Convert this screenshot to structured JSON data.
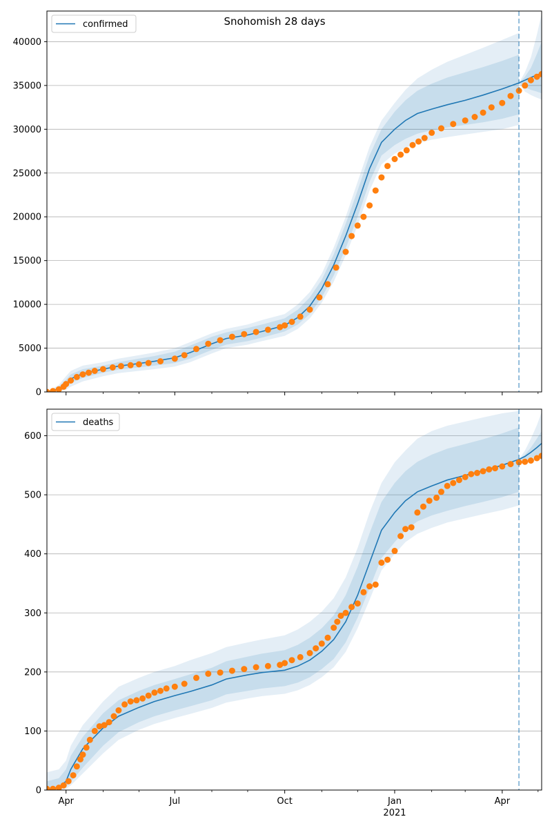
{
  "figure": {
    "title": "Snohomish 28 days"
  },
  "colors": {
    "band": "#1f77b4",
    "model_line": "#1f77b4",
    "observed": "#ff7f0e",
    "grid": "#b0b0b0",
    "forecast_line": "#1f77b4"
  },
  "x_axis": {
    "domain_days": [
      0,
      414
    ],
    "ticks": [
      {
        "day": 16,
        "label": "Apr",
        "sublabel": ""
      },
      {
        "day": 107,
        "label": "Jul",
        "sublabel": ""
      },
      {
        "day": 199,
        "label": "Oct",
        "sublabel": ""
      },
      {
        "day": 291,
        "label": "Jan",
        "sublabel": "2021"
      },
      {
        "day": 381,
        "label": "Apr",
        "sublabel": ""
      }
    ],
    "minor_ticks": [
      47,
      77,
      138,
      168,
      230,
      260,
      322,
      350,
      411
    ],
    "forecast_start_day": 395
  },
  "chart_data": [
    {
      "type": "line",
      "legend": "confirmed",
      "legend_position": "top-left",
      "grid": "horizontal",
      "ylim": [
        0,
        43500
      ],
      "yticks": [
        0,
        5000,
        10000,
        15000,
        20000,
        25000,
        30000,
        35000,
        40000
      ],
      "model": {
        "x": [
          0,
          10,
          16,
          20,
          30,
          47,
          60,
          77,
          90,
          107,
          120,
          138,
          150,
          168,
          180,
          199,
          210,
          220,
          230,
          240,
          250,
          260,
          270,
          280,
          291,
          300,
          310,
          322,
          335,
          350,
          365,
          381,
          395
        ],
        "y": [
          0,
          350,
          900,
          1500,
          2100,
          2600,
          2950,
          3250,
          3500,
          3900,
          4500,
          5500,
          6100,
          6500,
          6900,
          7600,
          8500,
          9800,
          11800,
          14500,
          17800,
          21500,
          25500,
          28500,
          30000,
          31000,
          31800,
          32300,
          32800,
          33300,
          33900,
          34600,
          35300
        ]
      },
      "bands": {
        "x": [
          0,
          10,
          16,
          20,
          30,
          47,
          60,
          77,
          90,
          107,
          120,
          138,
          150,
          168,
          180,
          199,
          210,
          220,
          230,
          240,
          250,
          260,
          270,
          280,
          291,
          300,
          310,
          322,
          335,
          350,
          365,
          381,
          395
        ],
        "outer_high": [
          0,
          800,
          1800,
          2400,
          3000,
          3400,
          3800,
          4200,
          4500,
          5000,
          5700,
          6700,
          7200,
          7700,
          8200,
          8900,
          10000,
          11400,
          13500,
          16500,
          20000,
          24000,
          28000,
          31000,
          33000,
          34500,
          35800,
          36800,
          37700,
          38500,
          39300,
          40200,
          41000
        ],
        "mid_high": [
          0,
          600,
          1400,
          2000,
          2600,
          3000,
          3400,
          3800,
          4100,
          4600,
          5300,
          6300,
          6800,
          7300,
          7700,
          8400,
          9400,
          10800,
          12800,
          15700,
          19200,
          23000,
          27000,
          30000,
          32000,
          33300,
          34400,
          35200,
          35900,
          36500,
          37100,
          37800,
          38500
        ],
        "mid_low": [
          0,
          150,
          500,
          1000,
          1600,
          2200,
          2550,
          2800,
          3000,
          3300,
          3800,
          4800,
          5400,
          5800,
          6200,
          6900,
          7700,
          8900,
          10800,
          13300,
          16400,
          20000,
          24000,
          27000,
          28200,
          28900,
          29500,
          29900,
          30200,
          30500,
          30800,
          31200,
          31700
        ],
        "outer_low": [
          0,
          50,
          250,
          600,
          1200,
          1800,
          2150,
          2400,
          2600,
          2900,
          3400,
          4400,
          5000,
          5400,
          5800,
          6400,
          7200,
          8400,
          10200,
          12600,
          15600,
          19000,
          23000,
          26000,
          27200,
          27900,
          28400,
          28800,
          29100,
          29400,
          29700,
          30000,
          30500
        ]
      },
      "forecast": {
        "x": [
          395,
          400,
          405,
          410,
          414
        ],
        "y": [
          35300,
          35600,
          35900,
          36200,
          36400
        ],
        "outer_high": [
          35300,
          36500,
          38200,
          40800,
          43200
        ],
        "mid_high": [
          35300,
          36000,
          37000,
          38600,
          40000
        ],
        "mid_low": [
          35300,
          34800,
          34500,
          34300,
          34100
        ],
        "outer_low": [
          35300,
          34300,
          33900,
          33600,
          33400
        ]
      },
      "observed": {
        "x": [
          0,
          5,
          10,
          14,
          16,
          20,
          25,
          30,
          35,
          40,
          47,
          55,
          62,
          70,
          77,
          85,
          95,
          107,
          115,
          125,
          135,
          145,
          155,
          165,
          175,
          185,
          195,
          199,
          205,
          212,
          220,
          228,
          235,
          242,
          250,
          255,
          260,
          265,
          270,
          275,
          280,
          285,
          291,
          296,
          301,
          306,
          311,
          316,
          322,
          330,
          340,
          350,
          358,
          365,
          372,
          381,
          388,
          395,
          400,
          405,
          410,
          414
        ],
        "y": [
          0,
          100,
          300,
          600,
          900,
          1300,
          1700,
          2000,
          2200,
          2400,
          2600,
          2800,
          2950,
          3050,
          3150,
          3300,
          3500,
          3800,
          4200,
          4900,
          5500,
          5900,
          6300,
          6600,
          6850,
          7100,
          7400,
          7600,
          8000,
          8600,
          9400,
          10800,
          12300,
          14200,
          16000,
          17800,
          19000,
          20000,
          21300,
          23000,
          24500,
          25800,
          26600,
          27100,
          27600,
          28200,
          28600,
          29000,
          29600,
          30100,
          30600,
          31000,
          31400,
          31900,
          32500,
          33000,
          33800,
          34400,
          35000,
          35600,
          36000,
          36300
        ]
      }
    },
    {
      "type": "line",
      "legend": "deaths",
      "legend_position": "top-left",
      "grid": "horizontal",
      "ylim": [
        0,
        645
      ],
      "yticks": [
        0,
        100,
        200,
        300,
        400,
        500,
        600
      ],
      "model": {
        "x": [
          0,
          10,
          16,
          20,
          30,
          47,
          60,
          77,
          90,
          107,
          120,
          138,
          150,
          168,
          180,
          199,
          210,
          220,
          230,
          240,
          250,
          260,
          270,
          280,
          291,
          300,
          310,
          322,
          335,
          350,
          365,
          381,
          395
        ],
        "y": [
          0,
          5,
          15,
          35,
          70,
          105,
          125,
          140,
          150,
          160,
          167,
          178,
          188,
          195,
          199,
          203,
          210,
          220,
          235,
          255,
          285,
          330,
          385,
          440,
          470,
          490,
          505,
          515,
          525,
          533,
          541,
          550,
          560
        ]
      },
      "bands": {
        "x": [
          0,
          10,
          16,
          20,
          30,
          47,
          60,
          77,
          90,
          107,
          120,
          138,
          150,
          168,
          180,
          199,
          210,
          220,
          230,
          240,
          250,
          260,
          270,
          280,
          291,
          300,
          310,
          322,
          335,
          350,
          365,
          381,
          395
        ],
        "outer_high": [
          30,
          35,
          50,
          75,
          110,
          150,
          175,
          190,
          200,
          210,
          220,
          232,
          242,
          250,
          255,
          262,
          272,
          285,
          302,
          325,
          360,
          410,
          470,
          520,
          555,
          575,
          595,
          608,
          617,
          624,
          631,
          638,
          642
        ],
        "mid_high": [
          15,
          20,
          35,
          58,
          90,
          130,
          152,
          168,
          178,
          188,
          196,
          207,
          218,
          226,
          231,
          237,
          246,
          258,
          274,
          296,
          330,
          378,
          435,
          488,
          520,
          540,
          556,
          568,
          578,
          586,
          594,
          604,
          614
        ],
        "mid_low": [
          0,
          2,
          6,
          14,
          38,
          75,
          98,
          115,
          125,
          135,
          142,
          152,
          162,
          168,
          172,
          176,
          182,
          191,
          205,
          222,
          250,
          292,
          342,
          393,
          420,
          440,
          455,
          465,
          473,
          481,
          488,
          496,
          505
        ],
        "outer_low": [
          0,
          0,
          2,
          8,
          28,
          62,
          85,
          102,
          112,
          122,
          129,
          139,
          148,
          155,
          159,
          163,
          169,
          178,
          191,
          208,
          234,
          274,
          322,
          372,
          400,
          420,
          434,
          444,
          453,
          460,
          467,
          474,
          482
        ]
      },
      "forecast": {
        "x": [
          395,
          400,
          405,
          410,
          414
        ],
        "y": [
          560,
          565,
          572,
          580,
          587
        ],
        "outer_high": [
          560,
          575,
          595,
          618,
          640
        ],
        "mid_high": [
          560,
          568,
          580,
          595,
          608
        ],
        "mid_low": [
          560,
          558,
          562,
          566,
          570
        ],
        "outer_low": [
          560,
          555,
          556,
          558,
          560
        ]
      },
      "observed": {
        "x": [
          0,
          5,
          10,
          14,
          18,
          22,
          25,
          28,
          30,
          33,
          36,
          40,
          44,
          48,
          52,
          56,
          60,
          65,
          70,
          75,
          80,
          85,
          90,
          95,
          100,
          107,
          115,
          125,
          135,
          145,
          155,
          165,
          175,
          185,
          195,
          199,
          205,
          212,
          220,
          225,
          230,
          235,
          240,
          243,
          246,
          250,
          255,
          260,
          265,
          270,
          275,
          280,
          285,
          291,
          296,
          300,
          305,
          310,
          315,
          320,
          326,
          330,
          335,
          340,
          345,
          350,
          355,
          360,
          365,
          370,
          375,
          381,
          388,
          395,
          400,
          405,
          410,
          414
        ],
        "y": [
          2,
          2,
          4,
          8,
          15,
          25,
          40,
          52,
          60,
          72,
          85,
          100,
          108,
          110,
          115,
          125,
          135,
          145,
          150,
          152,
          155,
          160,
          165,
          168,
          172,
          175,
          180,
          190,
          197,
          199,
          202,
          205,
          208,
          210,
          212,
          215,
          220,
          225,
          232,
          240,
          248,
          258,
          275,
          285,
          295,
          300,
          310,
          316,
          335,
          345,
          348,
          385,
          390,
          405,
          430,
          442,
          445,
          470,
          480,
          490,
          495,
          505,
          515,
          520,
          525,
          530,
          535,
          537,
          540,
          543,
          545,
          548,
          552,
          555,
          556,
          558,
          562,
          566
        ]
      }
    }
  ]
}
